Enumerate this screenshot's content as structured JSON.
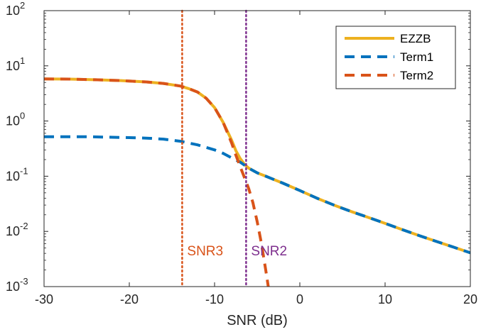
{
  "chart_data": {
    "type": "line",
    "title": "",
    "xlabel": "SNR (dB)",
    "ylabel": "",
    "xlim": [
      -30,
      20
    ],
    "ylim": [
      0.001,
      100
    ],
    "yscale": "log",
    "grid": false,
    "legend_position": "top-right",
    "x_ticks": [
      -30,
      -20,
      -10,
      0,
      10,
      20
    ],
    "x_tick_labels": [
      "-30",
      "-20",
      "-10",
      "0",
      "10",
      "20"
    ],
    "y_ticks": [
      {
        "value": 100,
        "base": "10",
        "exp": "2"
      },
      {
        "value": 10,
        "base": "10",
        "exp": "1"
      },
      {
        "value": 1,
        "base": "10",
        "exp": "0"
      },
      {
        "value": 0.1,
        "base": "10",
        "exp": "-1"
      },
      {
        "value": 0.01,
        "base": "10",
        "exp": "-2"
      },
      {
        "value": 0.001,
        "base": "10",
        "exp": "-3"
      }
    ],
    "series": [
      {
        "name": "EZZB",
        "color": "#EDB120",
        "style": "solid",
        "x": [
          -30,
          -27,
          -24,
          -21,
          -18,
          -16,
          -14,
          -13,
          -12,
          -11,
          -10,
          -9,
          -8,
          -7.5,
          -7,
          -6.5,
          -6,
          -5,
          -4,
          -2,
          0,
          2,
          4,
          6,
          8,
          10,
          12,
          14,
          16,
          18,
          20
        ],
        "y": [
          5.8,
          5.75,
          5.6,
          5.4,
          5.1,
          4.8,
          4.3,
          3.85,
          3.35,
          2.6,
          1.75,
          0.95,
          0.45,
          0.29,
          0.21,
          0.165,
          0.14,
          0.115,
          0.1,
          0.075,
          0.055,
          0.04,
          0.03,
          0.023,
          0.018,
          0.014,
          0.0108,
          0.0084,
          0.0066,
          0.0052,
          0.0041
        ]
      },
      {
        "name": "Term1",
        "color": "#0072BD",
        "style": "dashed",
        "x": [
          -30,
          -25,
          -20,
          -18,
          -16,
          -14,
          -12,
          -10,
          -9,
          -8,
          -7,
          -6,
          -5,
          -4,
          -2,
          0,
          2,
          4,
          6,
          8,
          10,
          12,
          14,
          16,
          18,
          20
        ],
        "y": [
          0.52,
          0.52,
          0.5,
          0.49,
          0.47,
          0.43,
          0.37,
          0.3,
          0.26,
          0.215,
          0.18,
          0.14,
          0.115,
          0.1,
          0.075,
          0.055,
          0.04,
          0.03,
          0.023,
          0.018,
          0.014,
          0.0108,
          0.0084,
          0.0066,
          0.0052,
          0.0041
        ]
      },
      {
        "name": "Term2",
        "color": "#D95319",
        "style": "dashed",
        "x": [
          -30,
          -27,
          -24,
          -21,
          -18,
          -16,
          -14,
          -13,
          -12,
          -11,
          -10,
          -9,
          -8,
          -7.5,
          -7,
          -6.5,
          -6,
          -5.5,
          -5,
          -4.5,
          -4,
          -3.7
        ],
        "y": [
          5.8,
          5.75,
          5.6,
          5.4,
          5.1,
          4.8,
          4.3,
          3.85,
          3.35,
          2.6,
          1.75,
          0.95,
          0.4,
          0.24,
          0.15,
          0.095,
          0.06,
          0.033,
          0.015,
          0.006,
          0.002,
          0.001
        ]
      }
    ],
    "annotations": [
      {
        "label": "SNR3",
        "x": -13.8,
        "color": "#D95319",
        "line_style": "dotted"
      },
      {
        "label": "SNR2",
        "x": -6.3,
        "color": "#7E2F8E",
        "line_style": "dotted"
      }
    ]
  }
}
